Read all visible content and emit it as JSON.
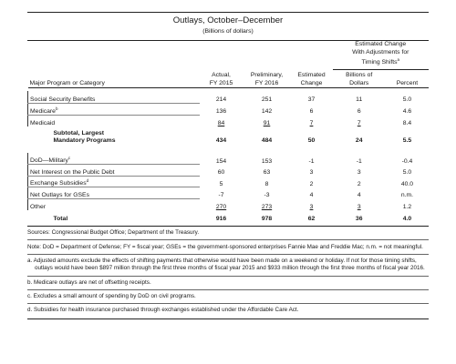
{
  "header": {
    "title": "Outlays, October–December",
    "subtitle": "(Billions of dollars)"
  },
  "columns": {
    "group_header_line1": "Estimated Change",
    "group_header_line2": "With Adjustments for",
    "group_header_line3": "Timing Shifts",
    "group_header_sup": "a",
    "label": "Major Program or Category",
    "actual_1": "Actual,",
    "actual_2": "FY 2015",
    "prelim_1": "Preliminary,",
    "prelim_2": "FY 2016",
    "estchg_1": "Estimated",
    "estchg_2": "Change",
    "billions_1": "Billions of",
    "billions_2": "Dollars",
    "percent": "Percent"
  },
  "rows": [
    {
      "label": "Social Security Benefits",
      "sup": "",
      "actual": "214",
      "prelim": "251",
      "change": "37",
      "billions": "11",
      "percent": "5.0"
    },
    {
      "label": "Medicare",
      "sup": "b",
      "actual": "136",
      "prelim": "142",
      "change": "6",
      "billions": "6",
      "percent": "4.6"
    },
    {
      "label": "Medicaid",
      "sup": "",
      "actual": "84",
      "prelim": "91",
      "change": "7",
      "billions": "7",
      "percent": "8.4"
    }
  ],
  "subtotal": {
    "label_1": "Subtotal, Largest",
    "label_2": "Mandatory Programs",
    "actual": "434",
    "prelim": "484",
    "change": "50",
    "billions": "24",
    "percent": "5.5"
  },
  "rows2": [
    {
      "label": "DoD—Military",
      "sup": "c",
      "actual": "154",
      "prelim": "153",
      "change": "-1",
      "billions": "-1",
      "percent": "-0.4"
    },
    {
      "label": "Net Interest on the Public Debt",
      "sup": "",
      "actual": "60",
      "prelim": "63",
      "change": "3",
      "billions": "3",
      "percent": "5.0"
    },
    {
      "label": "Exchange Subsidies",
      "sup": "d",
      "actual": "5",
      "prelim": "8",
      "change": "2",
      "billions": "2",
      "percent": "40.0"
    },
    {
      "label": "Net Outlays for GSEs",
      "sup": "",
      "actual": "-7",
      "prelim": "-3",
      "change": "4",
      "billions": "4",
      "percent": "n.m."
    },
    {
      "label": "Other",
      "sup": "",
      "actual": "270",
      "prelim": "273",
      "change": "3",
      "billions": "3",
      "percent": "1.2"
    }
  ],
  "total": {
    "label": "Total",
    "actual": "916",
    "prelim": "978",
    "change": "62",
    "billions": "36",
    "percent": "4.0"
  },
  "notes": {
    "sources": "Sources: Congressional Budget Office; Department of the Treasury.",
    "note": "Note: DoD = Department of Defense; FY = fiscal year; GSEs = the government-sponsored enterprises Fannie Mae and Freddie Mac; n.m. = not meaningful.",
    "a": "a. Adjusted amounts exclude the effects of shifting payments that otherwise would have been made on a weekend or holiday. If not for those timing shifts, outlays would have been $897 million through the first three months of fiscal year 2015 and $933 million through the first three months of fiscal year 2016.",
    "b": "b. Medicare outlays are net of offsetting receipts.",
    "c": "c. Excludes a small amount of spending by DoD on civil programs.",
    "d": "d. Subsidies for health insurance purchased through exchanges established under the Affordable Care Act."
  }
}
